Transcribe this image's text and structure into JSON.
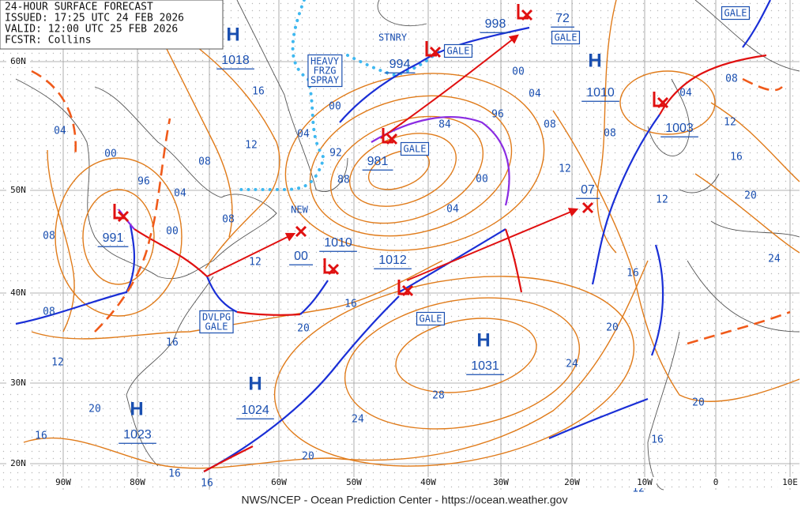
{
  "header": {
    "lines": [
      "24-HOUR SURFACE FORECAST",
      "ISSUED: 17:25 UTC 24 FEB 2026",
      "VALID:  12:00 UTC 25 FEB 2026",
      "FCSTR: Collins"
    ]
  },
  "highs": [
    {
      "symbol": "H",
      "pressure": "1018"
    },
    {
      "symbol": "H",
      "pressure": "1010"
    },
    {
      "symbol": "H",
      "pressure": "1031"
    },
    {
      "symbol": "H",
      "pressure": "1024"
    },
    {
      "symbol": "H",
      "pressure": "1023"
    }
  ],
  "low_pressures": [
    "991",
    "981",
    "994",
    "998",
    "1003",
    "1012",
    "1010",
    "00",
    "72",
    "07"
  ],
  "boxes": [
    {
      "lines": [
        "GALE"
      ]
    },
    {
      "lines": [
        "GALE"
      ]
    },
    {
      "lines": [
        "GALE"
      ]
    },
    {
      "lines": [
        "GALE"
      ]
    },
    {
      "lines": [
        "GALE"
      ]
    },
    {
      "lines": [
        "DVLPG",
        "GALE"
      ]
    },
    {
      "lines": [
        "HEAVY",
        "FRZG",
        "SPRAY"
      ]
    }
  ],
  "plain_labels": [
    "STNRY",
    "NEW"
  ],
  "isobar_labels": [
    "16",
    "12",
    "04",
    "00",
    "92",
    "88",
    "84",
    "96",
    "00",
    "04",
    "08",
    "12",
    "00",
    "04",
    "08",
    "12",
    "16",
    "20",
    "24",
    "12",
    "16",
    "20",
    "24",
    "28",
    "24",
    "20",
    "16",
    "20",
    "12",
    "08",
    "04",
    "08",
    "04",
    "00",
    "96",
    "00",
    "08",
    "08",
    "12",
    "16",
    "20",
    "16",
    "16",
    "16",
    "16",
    "20",
    "12",
    "04",
    "08"
  ],
  "latitude_labels": [
    "60N",
    "50N",
    "40N",
    "30N",
    "20N"
  ],
  "longitude_labels": [
    "90W",
    "80W",
    "60W",
    "50W",
    "40W",
    "30W",
    "20W",
    "10W",
    "0",
    "10E"
  ],
  "footer": "NWS/NCEP - Ocean Prediction Center - https://ocean.weather.gov"
}
